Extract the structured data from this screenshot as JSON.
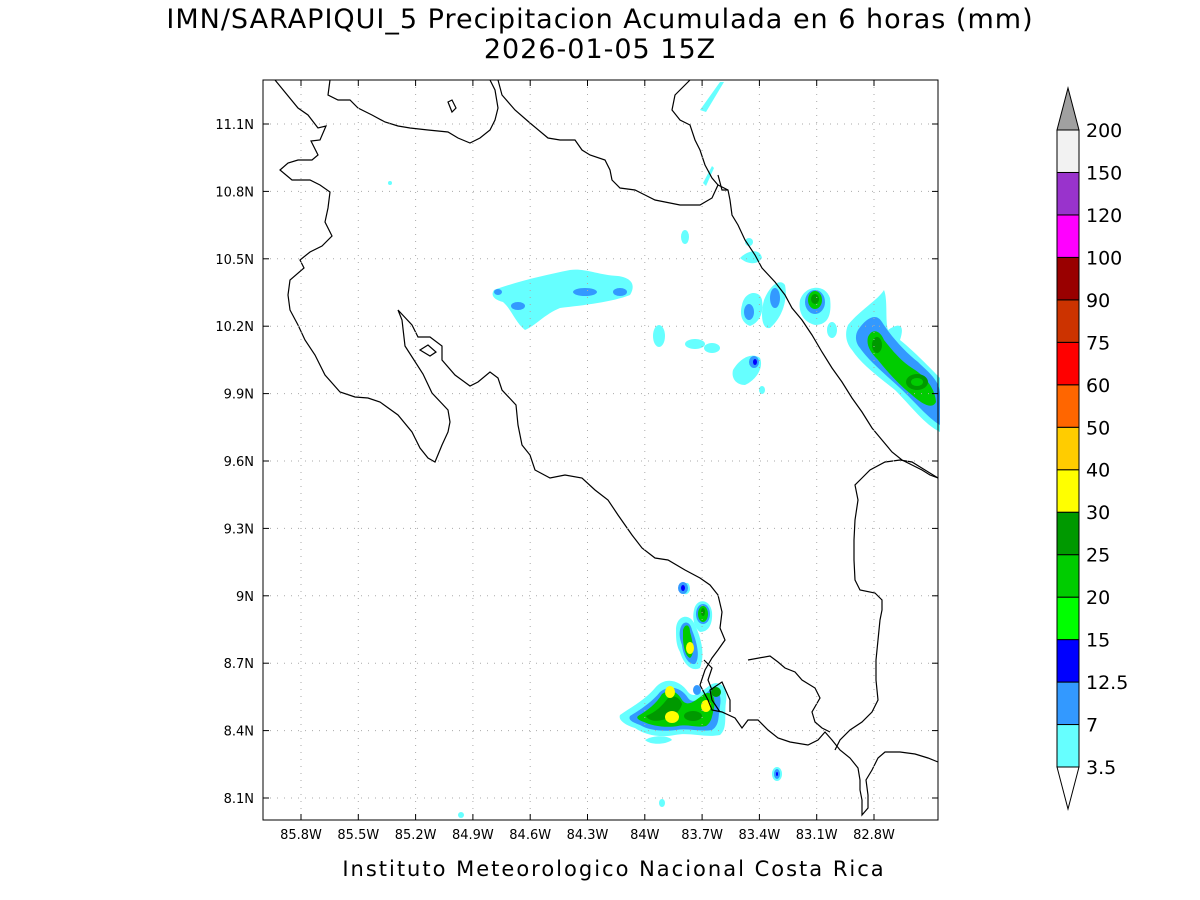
{
  "title": {
    "line1": "IMN/SARAPIQUI_5 Precipitacion Acumulada en 6 horas (mm)",
    "line2": "2026-01-05 15Z"
  },
  "footer": "Instituto Meteorologico Nacional Costa Rica",
  "axes": {
    "lon_ticks": [
      "85.8W",
      "85.5W",
      "85.2W",
      "84.9W",
      "84.6W",
      "84.3W",
      "84W",
      "83.7W",
      "83.4W",
      "83.1W",
      "82.8W"
    ],
    "lat_ticks": [
      "11.1N",
      "10.8N",
      "10.5N",
      "10.2N",
      "9.9N",
      "9.6N",
      "9.3N",
      "9N",
      "8.7N",
      "8.4N",
      "8.1N"
    ],
    "grid": true
  },
  "colorbar": {
    "labels": [
      "3.5",
      "7",
      "12.5",
      "15",
      "20",
      "25",
      "30",
      "40",
      "50",
      "60",
      "75",
      "90",
      "100",
      "120",
      "150",
      "200"
    ],
    "colors": [
      "#66ffff",
      "#3399ff",
      "#0000ff",
      "#00ff00",
      "#00cc00",
      "#009900",
      "#ffff00",
      "#ffcc00",
      "#ff6600",
      "#ff0000",
      "#cc3300",
      "#990000",
      "#ff00ff",
      "#9933cc",
      "#f2f2f2"
    ],
    "arrow_colors": {
      "low": "#ffffff",
      "high": "#a0a0a0"
    }
  }
}
